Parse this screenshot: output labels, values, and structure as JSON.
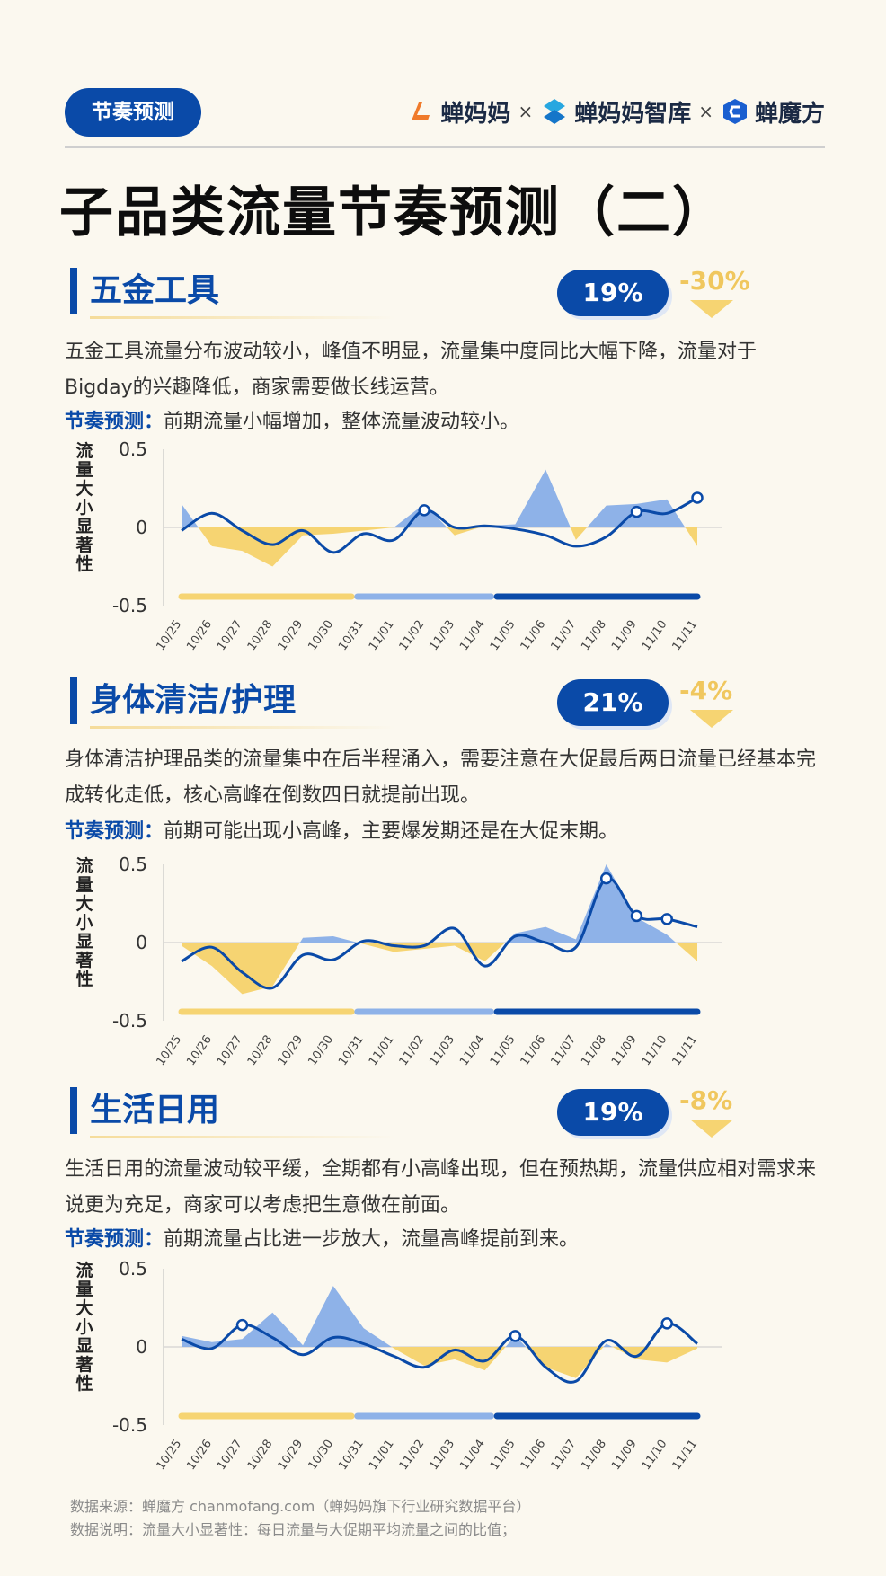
{
  "header": {
    "tag": "节奏预测",
    "brands": [
      "蝉妈妈",
      "蝉妈妈智库",
      "蝉魔方"
    ],
    "separator": "×"
  },
  "page_title": "子品类流量节奏预测（二）",
  "colors": {
    "primary": "#0a4aa8",
    "accent": "#f6d472",
    "positive_area": "#8eb2e8",
    "negative_area": "#f6d472",
    "line": "#0a4aa8"
  },
  "sections": [
    {
      "title": "五金工具",
      "share": "19%",
      "change": "-30%",
      "desc": "五金工具流量分布波动较小，峰值不明显，流量集中度同比大幅下降，流量对于Bigday的兴趣降低，商家需要做长线运营。",
      "rhythm_label": "节奏预测：",
      "rhythm_text": "前期流量小幅增加，整体流量波动较小。"
    },
    {
      "title": "身体清洁/护理",
      "share": "21%",
      "change": "-4%",
      "desc": "身体清洁护理品类的流量集中在后半程涌入，需要注意在大促最后两日流量已经基本完成转化走低，核心高峰在倒数四日就提前出现。",
      "rhythm_label": "节奏预测：",
      "rhythm_text": "前期可能出现小高峰，主要爆发期还是在大促末期。"
    },
    {
      "title": "生活日用",
      "share": "19%",
      "change": "-8%",
      "desc": "生活日用的流量波动较平缓，全期都有小高峰出现，但在预热期，流量供应相对需求来说更为充足，商家可以考虑把生意做在前面。",
      "rhythm_label": "节奏预测：",
      "rhythm_text": "前期流量占比进一步放大，流量高峰提前到来。"
    }
  ],
  "chart_data": [
    {
      "type": "area",
      "ylabel": "流量大小显著性",
      "ylim": [
        -0.5,
        0.5
      ],
      "yticks": [
        "0.5",
        "0",
        "-0.5"
      ],
      "categories": [
        "10/25",
        "10/26",
        "10/27",
        "10/28",
        "10/29",
        "10/30",
        "10/31",
        "11/01",
        "11/02",
        "11/03",
        "11/04",
        "11/05",
        "11/06",
        "11/07",
        "11/08",
        "11/09",
        "11/10",
        "11/11"
      ],
      "area_values": [
        0.15,
        -0.12,
        -0.15,
        -0.25,
        -0.05,
        -0.04,
        -0.02,
        0.0,
        0.15,
        -0.05,
        0.01,
        0.02,
        0.37,
        -0.08,
        0.14,
        0.15,
        0.18,
        -0.12
      ],
      "line_values": [
        -0.02,
        0.09,
        -0.02,
        -0.11,
        -0.02,
        -0.16,
        -0.04,
        -0.08,
        0.11,
        0.0,
        0.01,
        -0.01,
        -0.05,
        -0.12,
        -0.06,
        0.1,
        0.09,
        0.19
      ],
      "line_markers": [
        8,
        15,
        17
      ],
      "period_bars": [
        {
          "start": 0,
          "end": 5.6,
          "color": "#f6d472"
        },
        {
          "start": 5.8,
          "end": 10.2,
          "color": "#8eb2e8"
        },
        {
          "start": 10.4,
          "end": 17,
          "color": "#0a4aa8"
        }
      ]
    },
    {
      "type": "area",
      "ylabel": "流量大小显著性",
      "ylim": [
        -0.5,
        0.5
      ],
      "yticks": [
        "0.5",
        "0",
        "-0.5"
      ],
      "categories": [
        "10/25",
        "10/26",
        "10/27",
        "10/28",
        "10/29",
        "10/30",
        "10/31",
        "11/01",
        "11/02",
        "11/03",
        "11/04",
        "11/05",
        "11/06",
        "11/07",
        "11/08",
        "11/09",
        "11/10",
        "11/11"
      ],
      "area_values": [
        -0.02,
        -0.15,
        -0.33,
        -0.28,
        0.03,
        0.04,
        -0.01,
        -0.06,
        -0.04,
        -0.02,
        -0.12,
        0.06,
        0.1,
        0.02,
        0.5,
        0.16,
        0.05,
        -0.12
      ],
      "line_values": [
        -0.12,
        -0.03,
        -0.19,
        -0.29,
        -0.08,
        -0.11,
        0.01,
        -0.02,
        -0.02,
        0.09,
        -0.15,
        0.04,
        0.0,
        -0.03,
        0.41,
        0.17,
        0.15,
        0.1
      ],
      "line_markers": [
        14,
        15,
        16
      ],
      "period_bars": [
        {
          "start": 0,
          "end": 5.6,
          "color": "#f6d472"
        },
        {
          "start": 5.8,
          "end": 10.2,
          "color": "#8eb2e8"
        },
        {
          "start": 10.4,
          "end": 17,
          "color": "#0a4aa8"
        }
      ]
    },
    {
      "type": "area",
      "ylabel": "流量大小显著性",
      "ylim": [
        -0.5,
        0.5
      ],
      "yticks": [
        "0.5",
        "0",
        "-0.5"
      ],
      "categories": [
        "10/25",
        "10/26",
        "10/27",
        "10/28",
        "10/29",
        "10/30",
        "10/31",
        "11/01",
        "11/02",
        "11/03",
        "11/04",
        "11/05",
        "11/06",
        "11/07",
        "11/08",
        "11/09",
        "11/10",
        "11/11"
      ],
      "area_values": [
        0.07,
        0.03,
        0.05,
        0.22,
        0.01,
        0.39,
        0.12,
        -0.01,
        -0.12,
        -0.08,
        -0.15,
        0.07,
        -0.13,
        -0.2,
        0.02,
        -0.08,
        -0.1,
        -0.01
      ],
      "line_values": [
        0.05,
        -0.01,
        0.14,
        0.06,
        -0.05,
        0.06,
        0.02,
        -0.06,
        -0.13,
        -0.02,
        -0.09,
        0.07,
        -0.13,
        -0.22,
        0.04,
        -0.06,
        0.15,
        0.02
      ],
      "line_markers": [
        2,
        11,
        16
      ],
      "period_bars": [
        {
          "start": 0,
          "end": 5.6,
          "color": "#f6d472"
        },
        {
          "start": 5.8,
          "end": 10.2,
          "color": "#8eb2e8"
        },
        {
          "start": 10.4,
          "end": 17,
          "color": "#0a4aa8"
        }
      ]
    }
  ],
  "footer": {
    "source": "数据来源：蝉魔方 chanmofang.com（蝉妈妈旗下行业研究数据平台）",
    "note": "数据说明：流量大小显著性：每日流量与大促期平均流量之间的比值；"
  }
}
